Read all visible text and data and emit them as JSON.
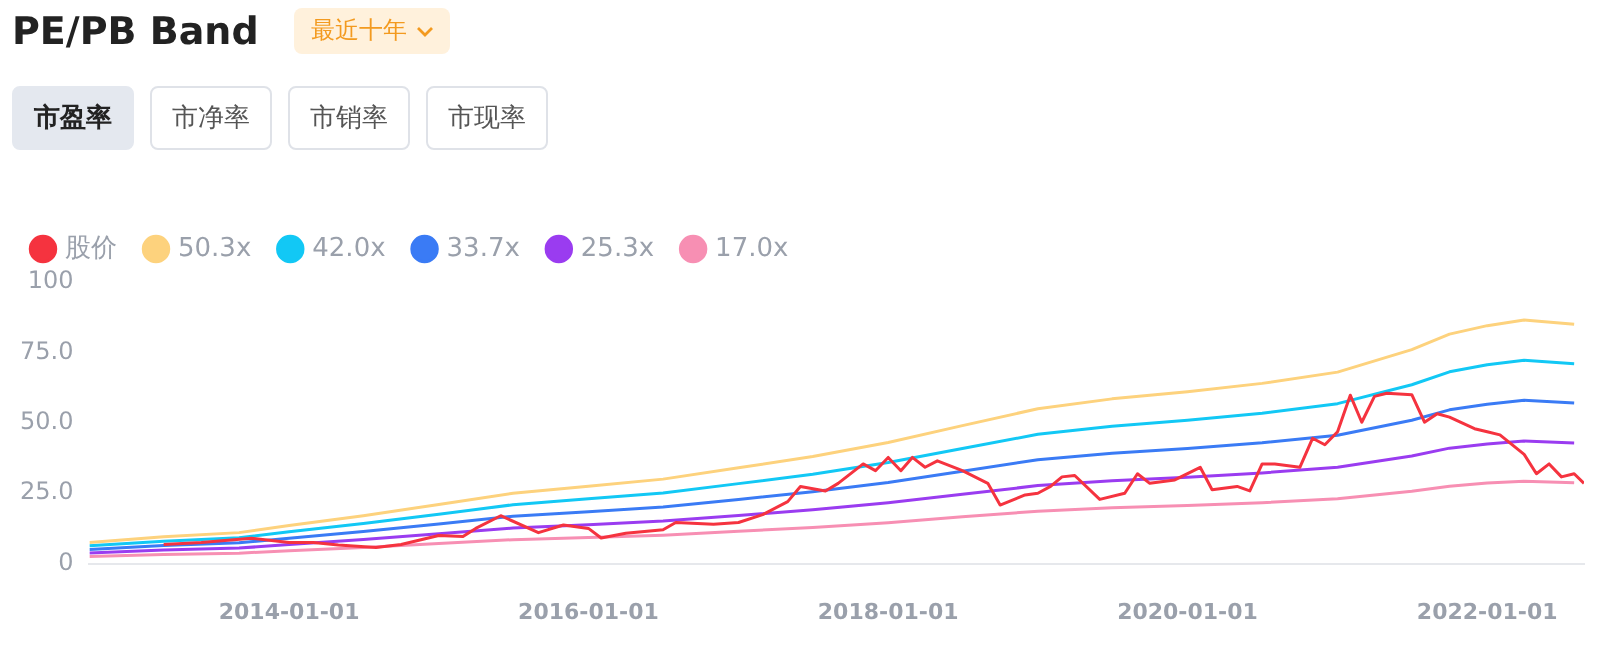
{
  "chart_data": {
    "type": "line",
    "title": "PE/PB Band",
    "annotations": [
      "最近十年",
      "市盈率",
      "市净率",
      "市销率",
      "市现率"
    ],
    "xlim": [
      "2012-09",
      "2022-08-25"
    ],
    "xticks": [
      "2014-01-01",
      "2016-01-01",
      "2018-01-01",
      "2020-01-01",
      "2022-01-01"
    ],
    "ylim": [
      0,
      100
    ],
    "yticks": [
      0,
      {
        "value": 25,
        "label": "25.0"
      },
      {
        "value": 50,
        "label": "50.0"
      },
      {
        "value": 75,
        "label": "75.0"
      },
      100
    ],
    "grid": false,
    "legend": "top left",
    "marker": "none",
    "series": [
      {
        "name": "股价",
        "color": "#f5333f",
        "x": [
          "2013-03",
          "2013-06",
          "2013-10",
          "2014-01",
          "2014-03",
          "2014-05",
          "2014-08",
          "2014-10",
          "2015-01",
          "2015-03",
          "2015-04",
          "2015-06",
          "2015-09",
          "2015-11",
          "2016-01",
          "2016-02",
          "2016-04",
          "2016-07",
          "2016-08",
          "2016-11",
          "2017-01",
          "2017-03",
          "2017-05",
          "2017-06",
          "2017-08",
          "2017-09",
          "2017-11",
          "2017-12",
          "2018-01",
          "2018-02",
          "2018-03",
          "2018-04",
          "2018-05",
          "2018-07",
          "2018-09",
          "2018-10",
          "2018-12",
          "2019-01",
          "2019-02",
          "2019-03",
          "2019-04",
          "2019-06",
          "2019-08",
          "2019-09",
          "2019-10",
          "2019-12",
          "2020-02",
          "2020-03",
          "2020-05",
          "2020-06",
          "2020-07",
          "2020-08",
          "2020-10",
          "2020-11",
          "2020-12",
          "2021-01",
          "2021-02",
          "2021-03",
          "2021-04",
          "2021-05",
          "2021-07",
          "2021-08",
          "2021-09",
          "2021-10",
          "2021-12",
          "2022-01",
          "2022-02",
          "2022-04",
          "2022-05",
          "2022-06",
          "2022-07",
          "2022-08",
          "2022-08-25"
        ],
        "values": [
          6.8,
          7.5,
          9,
          7.5,
          7.5,
          6.6,
          5.7,
          6.8,
          10,
          9.6,
          12.5,
          17,
          11,
          13.7,
          12.5,
          9.1,
          10.8,
          12,
          14.6,
          14,
          14.6,
          17.4,
          22,
          27.4,
          25.8,
          28.5,
          35.4,
          33,
          37.7,
          33,
          37.7,
          34.2,
          36.5,
          33,
          28.5,
          20.8,
          24.4,
          25,
          27.4,
          30.8,
          31.3,
          22.8,
          25,
          31.9,
          28.5,
          29.7,
          34.2,
          26.2,
          27.4,
          25.8,
          35.4,
          35.4,
          34.2,
          44.5,
          42.2,
          46.8,
          59.8,
          50.2,
          59.4,
          60.5,
          60,
          50.2,
          53.2,
          52,
          47.9,
          46.8,
          45.7,
          38.8,
          31.9,
          35.4,
          30.8,
          31.9,
          28.5
        ]
      },
      {
        "name": "50.3x",
        "color": "#fdd27d",
        "x": [
          "2012-09",
          "2013-03",
          "2013-09",
          "2014-01",
          "2014-07",
          "2015-01",
          "2015-07",
          "2016-01",
          "2016-07",
          "2017-01",
          "2017-07",
          "2018-01",
          "2018-07",
          "2019-01",
          "2019-07",
          "2020-01",
          "2020-07",
          "2021-01",
          "2021-07",
          "2021-10",
          "2022-01",
          "2022-04",
          "2022-08"
        ],
        "values": [
          7.5,
          9.5,
          11,
          13.5,
          17,
          21,
          25,
          27.5,
          30,
          34,
          38,
          43,
          49,
          55,
          58.5,
          61,
          64,
          68,
          76,
          81.5,
          84.5,
          86.5,
          85
        ]
      },
      {
        "name": "42.0x",
        "color": "#12c8f5",
        "x": [
          "2012-09",
          "2013-03",
          "2013-09",
          "2014-01",
          "2014-07",
          "2015-01",
          "2015-07",
          "2016-01",
          "2016-07",
          "2017-01",
          "2017-07",
          "2018-01",
          "2018-07",
          "2019-01",
          "2019-07",
          "2020-01",
          "2020-07",
          "2021-01",
          "2021-07",
          "2021-10",
          "2022-01",
          "2022-04",
          "2022-08"
        ],
        "values": [
          6.3,
          7.9,
          9.2,
          11.3,
          14.2,
          17.5,
          20.9,
          23,
          25.1,
          28.4,
          31.7,
          35.9,
          40.9,
          45.9,
          48.8,
          50.9,
          53.4,
          56.8,
          63.5,
          68.1,
          70.6,
          72.2,
          71
        ]
      },
      {
        "name": "33.7x",
        "color": "#3a7bf5",
        "x": [
          "2012-09",
          "2013-03",
          "2013-09",
          "2014-01",
          "2014-07",
          "2015-01",
          "2015-07",
          "2016-01",
          "2016-07",
          "2017-01",
          "2017-07",
          "2018-01",
          "2018-07",
          "2019-01",
          "2019-07",
          "2020-01",
          "2020-07",
          "2021-01",
          "2021-07",
          "2021-10",
          "2022-01",
          "2022-04",
          "2022-08"
        ],
        "values": [
          5,
          6.4,
          7.4,
          9,
          11.4,
          14.1,
          16.8,
          18.4,
          20.1,
          22.8,
          25.5,
          28.8,
          32.8,
          36.9,
          39.2,
          40.9,
          42.9,
          45.6,
          50.9,
          54.6,
          56.6,
          58,
          57
        ]
      },
      {
        "name": "25.3x",
        "color": "#9a3cf0",
        "x": [
          "2012-09",
          "2013-03",
          "2013-09",
          "2014-01",
          "2014-07",
          "2015-01",
          "2015-07",
          "2016-01",
          "2016-07",
          "2017-01",
          "2017-07",
          "2018-01",
          "2018-07",
          "2019-01",
          "2019-07",
          "2020-01",
          "2020-07",
          "2021-01",
          "2021-07",
          "2021-10",
          "2022-01",
          "2022-04",
          "2022-08"
        ],
        "values": [
          3.8,
          4.8,
          5.5,
          6.8,
          8.6,
          10.6,
          12.6,
          13.8,
          15.1,
          17.1,
          19.1,
          21.6,
          24.6,
          27.7,
          29.4,
          30.7,
          32.2,
          34.2,
          38.2,
          41,
          42.5,
          43.5,
          42.8
        ]
      },
      {
        "name": "17.0x",
        "color": "#f78fb3",
        "x": [
          "2012-09",
          "2013-03",
          "2013-09",
          "2014-01",
          "2014-07",
          "2015-01",
          "2015-07",
          "2016-01",
          "2016-07",
          "2017-01",
          "2017-07",
          "2018-01",
          "2018-07",
          "2019-01",
          "2019-07",
          "2020-01",
          "2020-07",
          "2021-01",
          "2021-07",
          "2021-10",
          "2022-01",
          "2022-04",
          "2022-08"
        ],
        "values": [
          2.5,
          3.2,
          3.7,
          4.6,
          5.7,
          7.1,
          8.5,
          9.3,
          10.1,
          11.5,
          12.8,
          14.5,
          16.6,
          18.6,
          19.8,
          20.6,
          21.6,
          23,
          25.7,
          27.5,
          28.6,
          29.2,
          28.7
        ]
      }
    ]
  }
}
